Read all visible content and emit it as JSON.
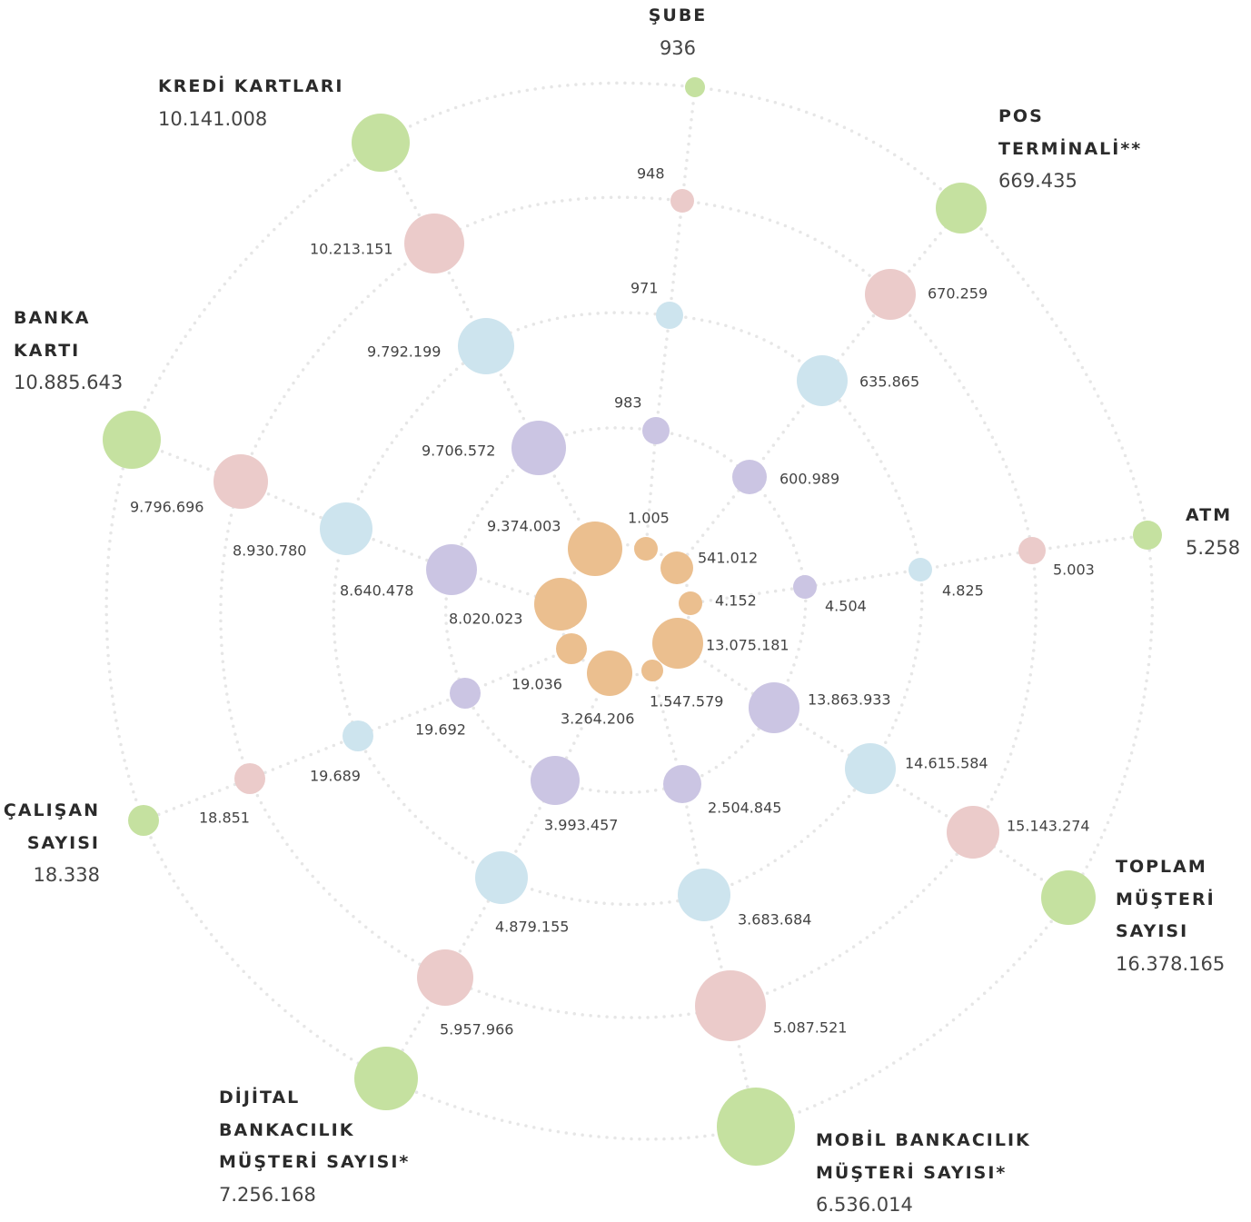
{
  "chart_data": {
    "type": "radial-bubble",
    "categories": [
      [
        "ŞUBE"
      ],
      [
        "POS",
        "TERMİNALİ**"
      ],
      [
        "ATM"
      ],
      [
        "TOPLAM",
        "MÜŞTERİ",
        "SAYISI"
      ],
      [
        "MOBİL BANKACILIK",
        "MÜŞTERİ SAYISI*"
      ],
      [
        "DİJİTAL",
        "BANKACILIK",
        "MÜŞTERİ SAYISI*"
      ],
      [
        "ÇALIŞAN",
        "SAYISI"
      ],
      [
        "BANKA",
        "KARTI"
      ],
      [
        "KREDİ KARTLARI"
      ]
    ],
    "series": [
      {
        "color": "#c5e1a0",
        "values": [
          936,
          669435,
          5258,
          16378165,
          6536014,
          7256168,
          18338,
          10885643,
          10141008
        ],
        "value_labels": [
          "936",
          "669.435",
          "5.258",
          "16.378.165",
          "6.536.014",
          "7.256.168",
          "18.338",
          "10.885.643",
          "10.141.008"
        ]
      },
      {
        "color": "#ebcbca",
        "values": [
          948,
          670259,
          5003,
          15143274,
          5087521,
          5957966,
          18851,
          9796696,
          10213151
        ],
        "value_labels": [
          "948",
          "670.259",
          "5.003",
          "15.143.274",
          "5.087.521",
          "5.957.966",
          "18.851",
          "9.796.696",
          "10.213.151"
        ]
      },
      {
        "color": "#cde4ee",
        "values": [
          971,
          635865,
          4825,
          14615584,
          3683684,
          4879155,
          19689,
          8930780,
          9792199
        ],
        "value_labels": [
          "971",
          "635.865",
          "4.825",
          "14.615.584",
          "3.683.684",
          "4.879.155",
          "19.689",
          "8.930.780",
          "9.792.199"
        ]
      },
      {
        "color": "#cbc5e3",
        "values": [
          983,
          600989,
          4504,
          13863933,
          2504845,
          3993457,
          19692,
          8640478,
          9706572
        ],
        "value_labels": [
          "983",
          "600.989",
          "4.504",
          "13.863.933",
          "2.504.845",
          "3.993.457",
          "19.692",
          "8.640.478",
          "9.706.572"
        ]
      },
      {
        "color": "#ebbf8f",
        "values": [
          1005,
          541012,
          4152,
          13075181,
          1547579,
          3264206,
          19036,
          8020023,
          9374003
        ],
        "value_labels": [
          "1.005",
          "541.012",
          "4.152",
          "13.075.181",
          "1.547.579",
          "3.264.206",
          "19.036",
          "8.020.023",
          "9.374.003"
        ]
      }
    ]
  }
}
